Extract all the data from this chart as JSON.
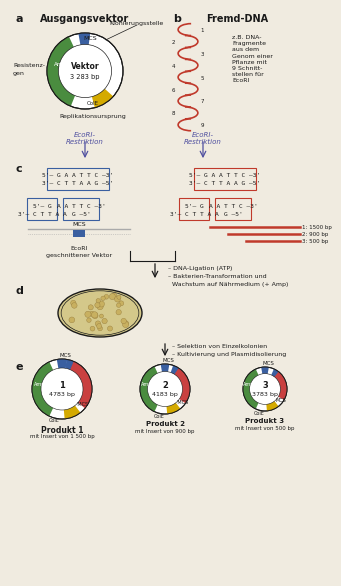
{
  "bg_color": "#f0ebe0",
  "label_a": "a",
  "label_b": "b",
  "label_c": "c",
  "label_d": "d",
  "label_e": "e",
  "section_a_title": "Ausgangsvektor",
  "section_b_title": "Fremd-DNA",
  "vektor_text": "Vektor",
  "vektor_bp": "3 283 bp",
  "mcs_label": "MCS",
  "ampr_label": "Ampʳ",
  "cole_label": "ColE",
  "klonierung_label": "Klonierungsstelle",
  "resistenz_line1": "Resistenz-",
  "resistenz_line2": "gen",
  "replikation_label": "Replikationsursprung",
  "ecori_left": "EcoRI-",
  "ecori_left2": "Restriktion",
  "ecori_right": "EcoRI-",
  "ecori_right2": "Restriktion",
  "fremd_text": "z.B. DNA-\nFragmente\naus dem\nGenom einer\nPflanze mit\n9 Schnitt-\nstellen für\nEcoRI",
  "seq_top": "5'– G A A T T C –3'",
  "seq_bot": "3'– C T T A A G –5'",
  "split_left_top": "5'– G",
  "split_left_bot": "3'– C T T A A",
  "split_right_top": "A A T T C –3'",
  "split_right_bot": "G –5'",
  "mcs_cut_label": "MCS",
  "ecori_cut_label": "EcoRI",
  "geschnittener_label": "geschnittener Vektor",
  "frag_labels": [
    "1: 1500 bp",
    "2: 900 bp",
    "3: 500 bp"
  ],
  "ligation_text1": "– DNA-Ligation (ATP)",
  "ligation_text2": "– Bakterien-Transformation und",
  "ligation_text3": "  Wachstum auf Nährmedium (+ Amp)",
  "selektion_text1": "– Selektion von Einzelkolonien",
  "selektion_text2": "– Kultivierung und Plasmidisolierung",
  "prod1_num": "1",
  "prod1_bp": "4783 bp",
  "prod1_label": "Produkt 1",
  "prod1_sub": "mit Insert von 1 500 bp",
  "prod2_num": "2",
  "prod2_bp": "4183 bp",
  "prod2_label": "Produkt 2",
  "prod2_sub": "mit Insert von 900 bp",
  "prod3_num": "3",
  "prod3_bp": "3783 bp",
  "prod3_label": "Produkt 3",
  "prod3_sub": "mit Insert von 500 bp",
  "color_bg": "#f0ebe0",
  "color_dark": "#1a1a1a",
  "color_green": "#4a8c3f",
  "color_blue": "#3a5fa0",
  "color_yellow": "#d4aa00",
  "color_red": "#c0392b",
  "color_salmon": "#c94040",
  "color_arrow": "#5050a0",
  "color_gray": "#999999"
}
